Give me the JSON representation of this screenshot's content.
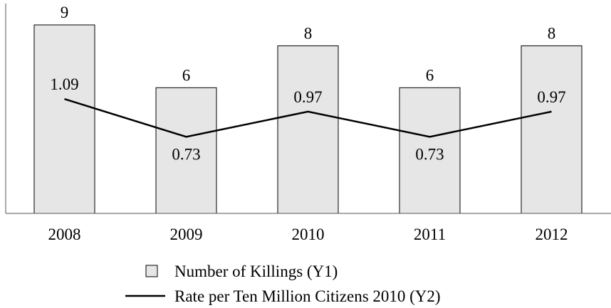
{
  "chart_data": {
    "type": "bar",
    "categories": [
      "2008",
      "2009",
      "2010",
      "2011",
      "2012"
    ],
    "series": [
      {
        "name": "Number of Killings (Y1)",
        "type": "bar",
        "axis": "y1",
        "values": [
          9,
          6,
          8,
          6,
          8
        ],
        "labels": [
          "9",
          "6",
          "8",
          "6",
          "8"
        ]
      },
      {
        "name": "Rate per Ten Million Citizens 2010 (Y2)",
        "type": "line",
        "axis": "y2",
        "values": [
          1.09,
          0.73,
          0.97,
          0.73,
          0.97
        ],
        "labels": [
          "1.09",
          "0.73",
          "0.97",
          "0.73",
          "0.97"
        ]
      }
    ],
    "y1lim": [
      0,
      9
    ],
    "y2lim": [
      0,
      2.0
    ],
    "grid": false,
    "legend_position": "bottom",
    "colors": {
      "bar_fill": "#e6e6e6",
      "bar_stroke": "#000000",
      "line": "#000000"
    }
  }
}
